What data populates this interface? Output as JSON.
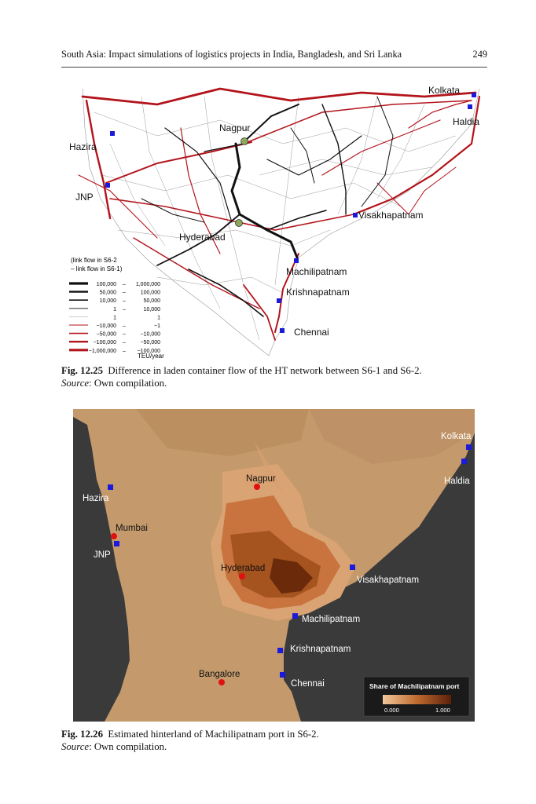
{
  "page": {
    "running_title": "South Asia: Impact simulations of logistics projects in India, Bangladesh, and Sri Lanka",
    "page_number": "249"
  },
  "figure1": {
    "ports": {
      "kolkata": "Kolkata",
      "haldia": "Haldia",
      "hazira": "Hazira",
      "jnp": "JNP",
      "visakhapatnam": "Visakhapatnam",
      "machilipatnam": "Machilipatnam",
      "krishnapatnam": "Krishnapatnam",
      "chennai": "Chennai"
    },
    "cities": {
      "nagpur": "Nagpur",
      "hyderabad": "Hyderabad"
    },
    "legend": {
      "line1": "(link flow in S6-2",
      "line2": "– link flow in S6-1)",
      "rows": [
        {
          "from": "100,000",
          "dash": "–",
          "to": "1,000,000"
        },
        {
          "from": "50,000",
          "dash": "–",
          "to": "100,000"
        },
        {
          "from": "10,000",
          "dash": "–",
          "to": "50,000"
        },
        {
          "from": "1",
          "dash": "–",
          "to": "10,000"
        },
        {
          "from": "1",
          "dash": "",
          "to": "1"
        },
        {
          "from": "−10,000",
          "dash": "–",
          "to": "−1"
        },
        {
          "from": "−50,000",
          "dash": "–",
          "to": "−10,000"
        },
        {
          "from": "−100,000",
          "dash": "–",
          "to": "−50,000"
        },
        {
          "from": "−1,000,000",
          "dash": "–",
          "to": "−100,000"
        }
      ],
      "unit": "TEU/year"
    },
    "colors": {
      "positive": "#111111",
      "negative": "#b3141b"
    },
    "caption_label": "Fig. 12.25",
    "caption_text": "Difference in laden container flow of the HT network between S6-1 and S6-2.",
    "source_label": "Source",
    "source_text": ": Own compilation."
  },
  "figure2": {
    "ports": {
      "kolkata": "Kolkata",
      "haldia": "Haldia",
      "hazira": "Hazira",
      "jnp": "JNP",
      "visakhapatnam": "Visakhapatnam",
      "machilipatnam": "Machilipatnam",
      "krishnapatnam": "Krishnapatnam",
      "chennai": "Chennai"
    },
    "cities": {
      "nagpur": "Nagpur",
      "mumbai": "Mumbai",
      "hyderabad": "Hyderabad",
      "bangalore": "Bangalore"
    },
    "legend": {
      "title": "Share of Machilipatnam port",
      "min": "0.000",
      "max": "1.000"
    },
    "colors": {
      "sea": "#3a3a3a",
      "land": "#c49a6c",
      "low": "#e8b98a",
      "high": "#6b2a0a",
      "port": "#1a1adb",
      "city": "#e01010"
    },
    "caption_label": "Fig. 12.26",
    "caption_text": "Estimated hinterland of Machilipatnam port in S6-2.",
    "source_label": "Source",
    "source_text": ": Own compilation."
  }
}
